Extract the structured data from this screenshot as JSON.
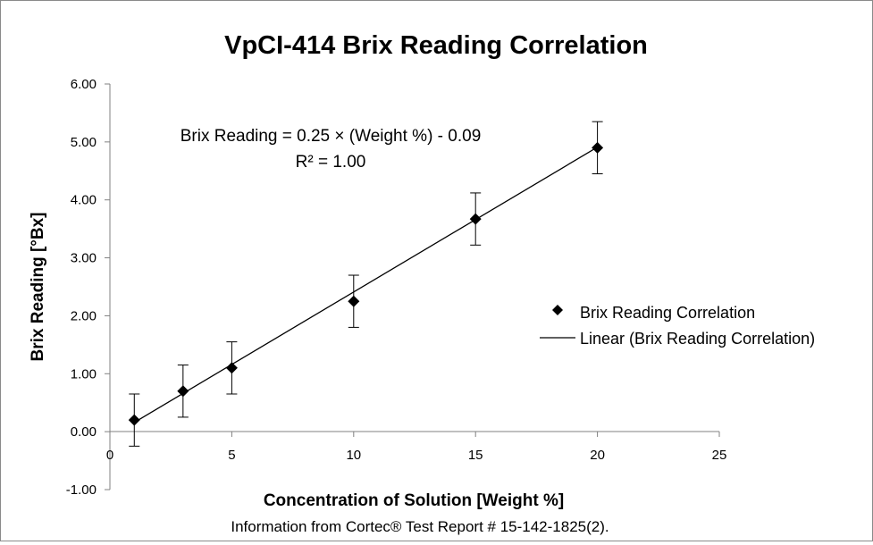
{
  "chart_data": {
    "type": "scatter",
    "title": "VpCI-414 Brix Reading Correlation",
    "xlabel": "Concentration of Solution [Weight %]",
    "ylabel": "Brix Reading [°Bx]",
    "xlim": [
      0,
      25
    ],
    "ylim": [
      -1,
      6
    ],
    "x_ticks": [
      0,
      5,
      10,
      15,
      20,
      25
    ],
    "x_tick_labels": [
      "0",
      "5",
      "10",
      "15",
      "20",
      "25"
    ],
    "y_ticks": [
      -1,
      0,
      1,
      2,
      3,
      4,
      5,
      6
    ],
    "y_tick_labels": [
      "-1.00",
      "0.00",
      "1.00",
      "2.00",
      "3.00",
      "4.00",
      "5.00",
      "6.00"
    ],
    "grid": false,
    "legend_position": "right",
    "series": [
      {
        "name": "Brix Reading Correlation",
        "marker": "diamond",
        "color": "#000000",
        "x": [
          1,
          3,
          5,
          10,
          15,
          20
        ],
        "y": [
          0.2,
          0.7,
          1.1,
          2.25,
          3.67,
          4.9
        ],
        "error": 0.45
      }
    ],
    "trendline": {
      "name": "Linear (Brix Reading Correlation)",
      "type": "linear",
      "slope": 0.25,
      "intercept": -0.09,
      "x_range": [
        1,
        20
      ],
      "color": "#000000"
    },
    "annotations": {
      "equation": "Brix Reading = 0.25 × (Weight %) - 0.09",
      "r_squared": "R² = 1.00"
    },
    "source_note": "Information from Cortec® Test Report # 15-142-1825(2)."
  }
}
